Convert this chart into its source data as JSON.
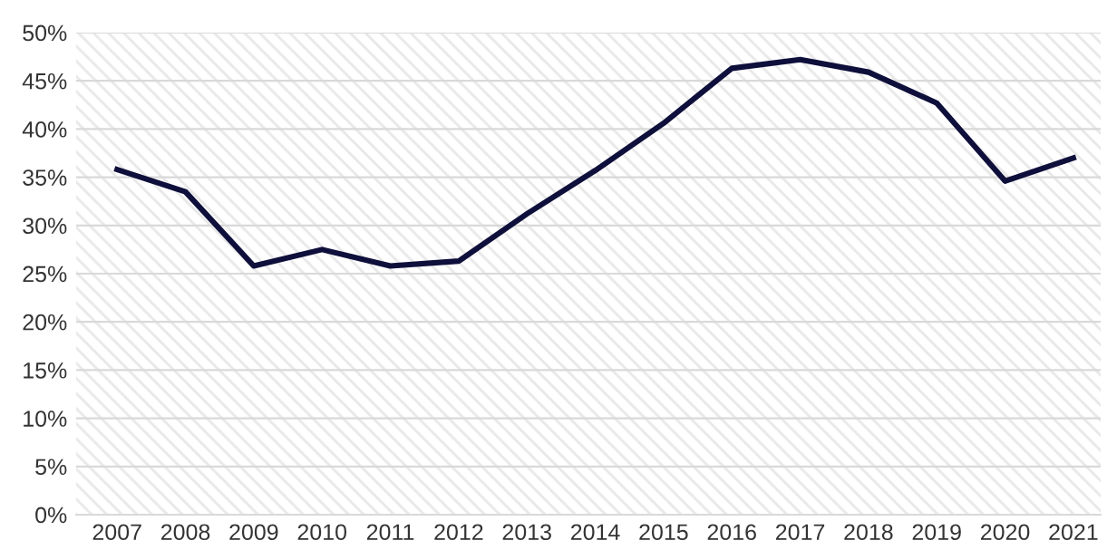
{
  "chart_data": {
    "type": "line",
    "categories": [
      "2007",
      "2008",
      "2009",
      "2010",
      "2011",
      "2012",
      "2013",
      "2014",
      "2015",
      "2016",
      "2017",
      "2018",
      "2019",
      "2020",
      "2021"
    ],
    "series": [
      {
        "color": "#0f0f3c",
        "values": [
          35.8,
          33.5,
          25.8,
          27.5,
          25.8,
          26.3,
          31.2,
          35.7,
          40.6,
          46.3,
          47.2,
          45.9,
          42.7,
          34.6,
          37.0
        ]
      }
    ],
    "ylim": [
      0,
      50
    ],
    "yticks": [
      {
        "value": 0,
        "label": "0%"
      },
      {
        "value": 5,
        "label": "5%"
      },
      {
        "value": 10,
        "label": "10%"
      },
      {
        "value": 15,
        "label": "15%"
      },
      {
        "value": 20,
        "label": "20%"
      },
      {
        "value": 25,
        "label": "25%"
      },
      {
        "value": 30,
        "label": "30%"
      },
      {
        "value": 35,
        "label": "35%"
      },
      {
        "value": 40,
        "label": "40%"
      },
      {
        "value": 45,
        "label": "45%"
      },
      {
        "value": 50,
        "label": "50%"
      }
    ],
    "grid": "y",
    "legend": false,
    "marker": "none",
    "line_style": "solid"
  }
}
